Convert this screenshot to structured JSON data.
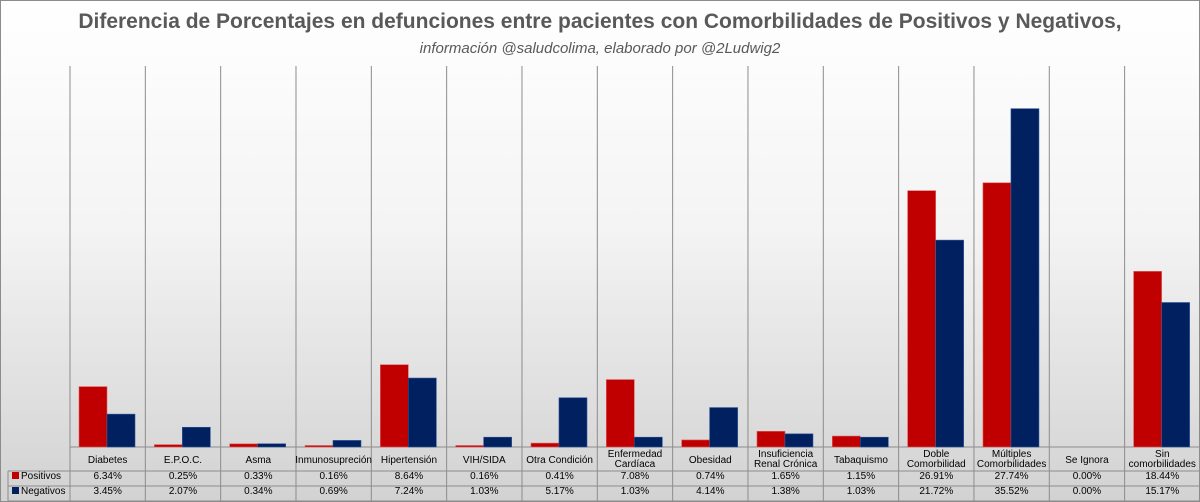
{
  "chart_data": {
    "type": "bar",
    "title": "Diferencia de Porcentajes en defunciones entre pacientes con Comorbilidades de Positivos y Negativos,",
    "subtitle": "información @saludcolima, elaborado por @2Ludwig2",
    "categories": [
      [
        "Diabetes"
      ],
      [
        "E.P.O.C."
      ],
      [
        "Asma"
      ],
      [
        "Inmunosupreción"
      ],
      [
        "Hipertensión"
      ],
      [
        "VIH/SIDA"
      ],
      [
        "Otra Condición"
      ],
      [
        "Enfermedad",
        "Cardíaca"
      ],
      [
        "Obesidad"
      ],
      [
        "Insuficiencia",
        "Renal Crónica"
      ],
      [
        "Tabaquismo"
      ],
      [
        "Doble",
        "Comorbilidad"
      ],
      [
        "Múltiples",
        "Comorbilidades"
      ],
      [
        "Se Ignora"
      ],
      [
        "Sin",
        "comorbilidades"
      ]
    ],
    "series": [
      {
        "name": "Positivos",
        "color": "#c00000",
        "values": [
          6.34,
          0.25,
          0.33,
          0.16,
          8.64,
          0.16,
          0.41,
          7.08,
          0.74,
          1.65,
          1.15,
          26.91,
          27.74,
          0.0,
          18.44
        ],
        "labels": [
          "6.34%",
          "0.25%",
          "0.33%",
          "0.16%",
          "8.64%",
          "0.16%",
          "0.41%",
          "7.08%",
          "0.74%",
          "1.65%",
          "1.15%",
          "26.91%",
          "27.74%",
          "0.00%",
          "18.44%"
        ]
      },
      {
        "name": "Negativos",
        "color": "#002060",
        "values": [
          3.45,
          2.07,
          0.34,
          0.69,
          7.24,
          1.03,
          5.17,
          1.03,
          4.14,
          1.38,
          1.03,
          21.72,
          35.52,
          0.0,
          15.17
        ],
        "labels": [
          "3.45%",
          "2.07%",
          "0.34%",
          "0.69%",
          "7.24%",
          "1.03%",
          "5.17%",
          "1.03%",
          "4.14%",
          "1.38%",
          "1.03%",
          "21.72%",
          "35.52%",
          "0.00%",
          "15.17%"
        ]
      }
    ],
    "ylim": [
      0,
      40
    ],
    "grid": "vertical category separators",
    "legend": "data table below chart"
  }
}
